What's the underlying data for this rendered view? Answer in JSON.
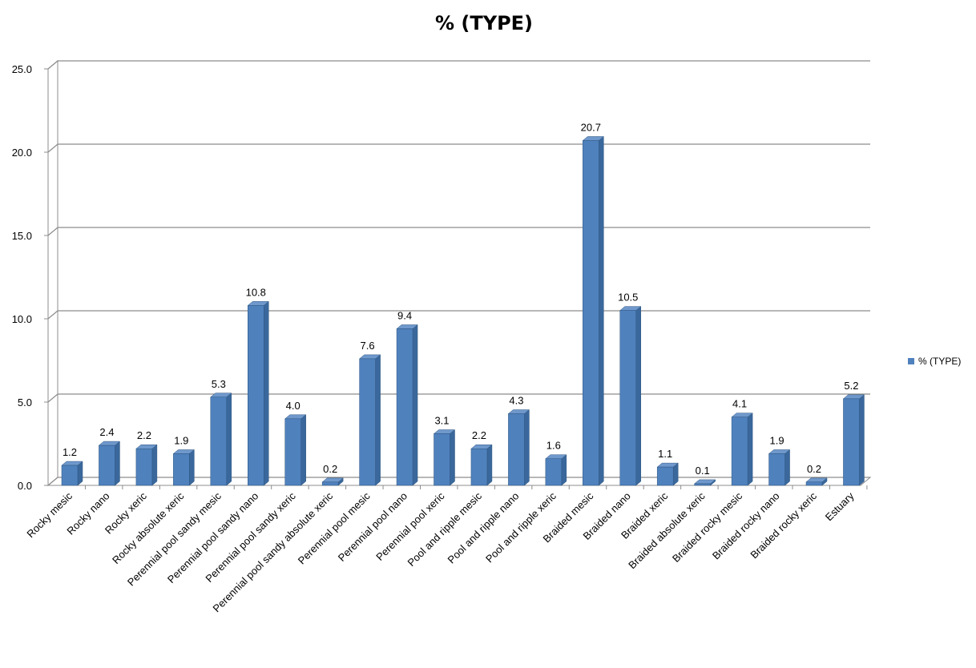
{
  "chart_data": {
    "type": "bar",
    "title": "% (TYPE)",
    "xlabel": "",
    "ylabel": "",
    "ylim": [
      0,
      25
    ],
    "yticks": [
      "0.0",
      "5.0",
      "10.0",
      "15.0",
      "20.0",
      "25.0"
    ],
    "grid": true,
    "legend_position": "right",
    "categories": [
      "Rocky mesic",
      "Rocky nano",
      "Rocky xeric",
      "Rocky absolute xeric",
      "Perennial pool sandy mesic",
      "Perennial pool sandy nano",
      "Perennial pool sandy xeric",
      "Perennial pool sandy absolute xeric",
      "Perennial pool mesic",
      "Perennial pool nano",
      "Perennial pool xeric",
      "Pool and ripple mesic",
      "Pool and ripple nano",
      "Pool and ripple xeric",
      "Braided mesic",
      "Braided nano",
      "Braided xeric",
      "Braided absolute xeric",
      "Braided rocky mesic",
      "Braided rocky nano",
      "Braided rocky xeric",
      "Estuary"
    ],
    "series": [
      {
        "name": "% (TYPE)",
        "color": "#4F81BD",
        "values": [
          1.2,
          2.4,
          2.2,
          1.9,
          5.3,
          10.8,
          4.0,
          0.2,
          7.6,
          9.4,
          3.1,
          2.2,
          4.3,
          1.6,
          20.7,
          10.5,
          1.1,
          0.1,
          4.1,
          1.9,
          0.2,
          5.2
        ],
        "labels": [
          "1.2",
          "2.4",
          "2.2",
          "1.9",
          "5.3",
          "10.8",
          "4.0",
          "0.2",
          "7.6",
          "9.4",
          "3.1",
          "2.2",
          "4.3",
          "1.6",
          "20.7",
          "10.5",
          "1.1",
          "0.1",
          "4.1",
          "1.9",
          "0.2",
          "5.2"
        ]
      }
    ]
  }
}
